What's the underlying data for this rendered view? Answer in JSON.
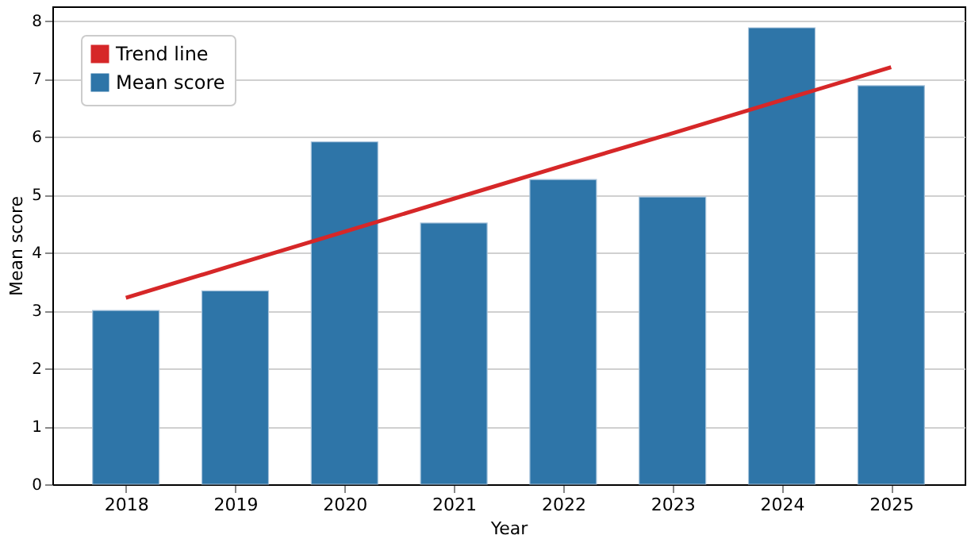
{
  "chart_data": {
    "type": "bar",
    "xlabel": "Year",
    "ylabel": "Mean score",
    "categories": [
      "2018",
      "2019",
      "2020",
      "2021",
      "2022",
      "2023",
      "2024",
      "2025"
    ],
    "series": [
      {
        "name": "Mean score",
        "color": "#2e75a8",
        "values": [
          3.0,
          3.34,
          5.91,
          4.51,
          5.26,
          4.96,
          7.88,
          6.88
        ]
      },
      {
        "name": "Trend line",
        "type": "line",
        "color": "#d62728",
        "values": [
          3.22,
          3.79,
          4.36,
          4.93,
          5.5,
          6.06,
          6.63,
          7.2
        ]
      }
    ],
    "ylim": [
      0,
      8.25
    ],
    "yticks": [
      0,
      1,
      2,
      3,
      4,
      5,
      6,
      7,
      8
    ],
    "grid": "y",
    "legend": "top left"
  }
}
